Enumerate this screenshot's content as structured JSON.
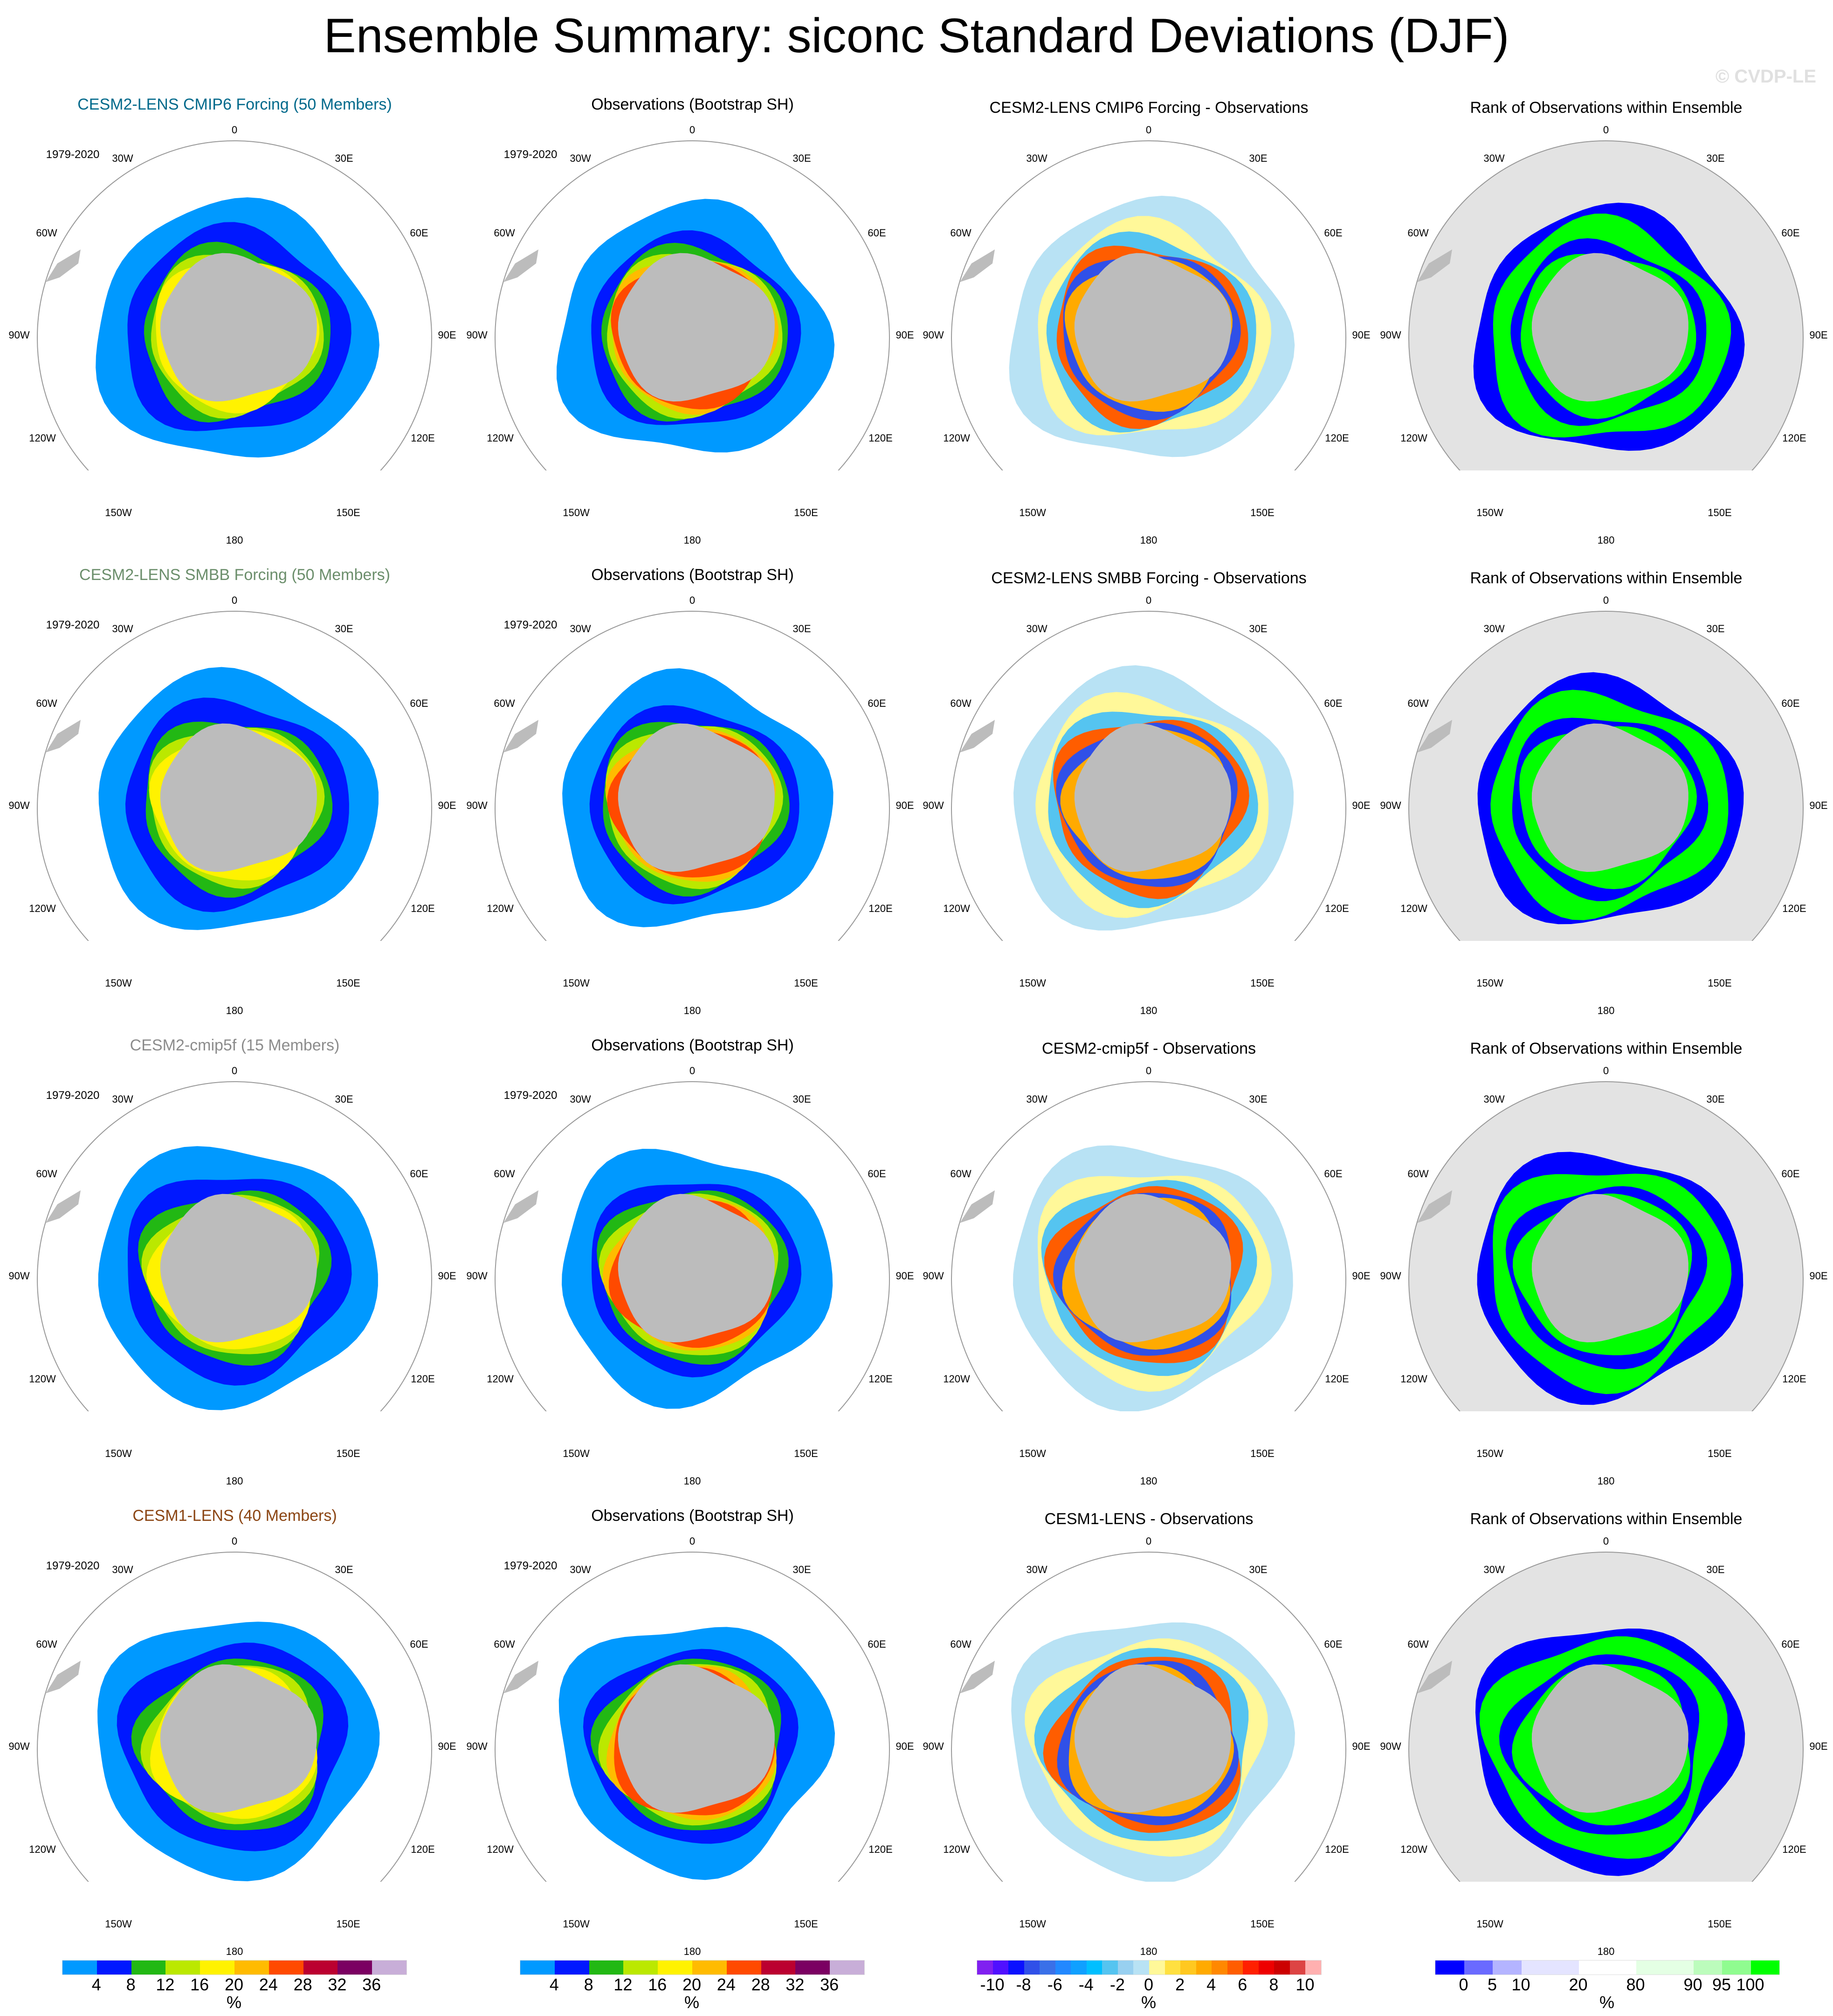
{
  "title": "Ensemble Summary: siconc Standard Deviations (DJF)",
  "copyright": "© CVDP-LE",
  "period": "1979-2020",
  "lon_labels": [
    "0",
    "30E",
    "60E",
    "90E",
    "120E",
    "150E",
    "180",
    "150W",
    "120W",
    "90W",
    "60W",
    "30W"
  ],
  "rows": [
    {
      "model": "CESM2-LENS CMIP6 Forcing (50 Members)",
      "model_color": "#00698b",
      "obs": "Observations (Bootstrap SH)",
      "diff": "CESM2-LENS CMIP6 Forcing - Observations",
      "rank": "Rank of Observations within Ensemble"
    },
    {
      "model": "CESM2-LENS SMBB Forcing (50 Members)",
      "model_color": "#6b8e6b",
      "obs": "Observations (Bootstrap SH)",
      "diff": "CESM2-LENS SMBB Forcing - Observations",
      "rank": "Rank of Observations within Ensemble"
    },
    {
      "model": "CESM2-cmip5f (15 Members)",
      "model_color": "#8c8c8c",
      "obs": "Observations (Bootstrap SH)",
      "diff": "CESM2-cmip5f - Observations",
      "rank": "Rank of Observations within Ensemble"
    },
    {
      "model": "CESM1-LENS (40 Members)",
      "model_color": "#8b4513",
      "obs": "Observations (Bootstrap SH)",
      "diff": "CESM1-LENS - Observations",
      "rank": "Rank of Observations within Ensemble"
    }
  ],
  "colorbars": [
    {
      "unit": "%",
      "labels": [
        "4",
        "8",
        "12",
        "16",
        "20",
        "24",
        "28",
        "32",
        "36"
      ],
      "colors": [
        "#0099ff",
        "#0018ff",
        "#22b814",
        "#bbe800",
        "#fff200",
        "#ffbb00",
        "#ff4a00",
        "#bb0030",
        "#7b0062",
        "#c8aed8"
      ]
    },
    {
      "unit": "%",
      "labels": [
        "4",
        "8",
        "12",
        "16",
        "20",
        "24",
        "28",
        "32",
        "36"
      ],
      "colors": [
        "#0099ff",
        "#0018ff",
        "#22b814",
        "#bbe800",
        "#fff200",
        "#ffbb00",
        "#ff4a00",
        "#bb0030",
        "#7b0062",
        "#c8aed8"
      ]
    },
    {
      "unit": "%",
      "labels": [
        "-10",
        "-8",
        "-6",
        "-4",
        "-2",
        "0",
        "2",
        "4",
        "6",
        "8",
        "10"
      ],
      "colors": [
        "#8020f0",
        "#5010ff",
        "#0a10ff",
        "#3050e8",
        "#3a70e8",
        "#2288ff",
        "#10a0ff",
        "#00bfff",
        "#55c4f0",
        "#98d0f0",
        "#b8e2f4",
        "#fff899",
        "#ffe040",
        "#ffc820",
        "#ffaa00",
        "#ff8800",
        "#ff5d00",
        "#ff2000",
        "#ee0000",
        "#cc0000",
        "#dd4444",
        "#ffb0b0"
      ]
    },
    {
      "unit": "%",
      "labels": [
        "0",
        "5",
        "10",
        "20",
        "80",
        "90",
        "95",
        "100"
      ],
      "colors": [
        "#0000ff",
        "#6a6aff",
        "#b4b4ff",
        "#e4e4ff",
        "#e4e4ff",
        "#ffffff",
        "#ffffff",
        "#e4ffe4",
        "#e4ffe4",
        "#bcfcbc",
        "#90fc90",
        "#00ff00"
      ]
    }
  ]
}
